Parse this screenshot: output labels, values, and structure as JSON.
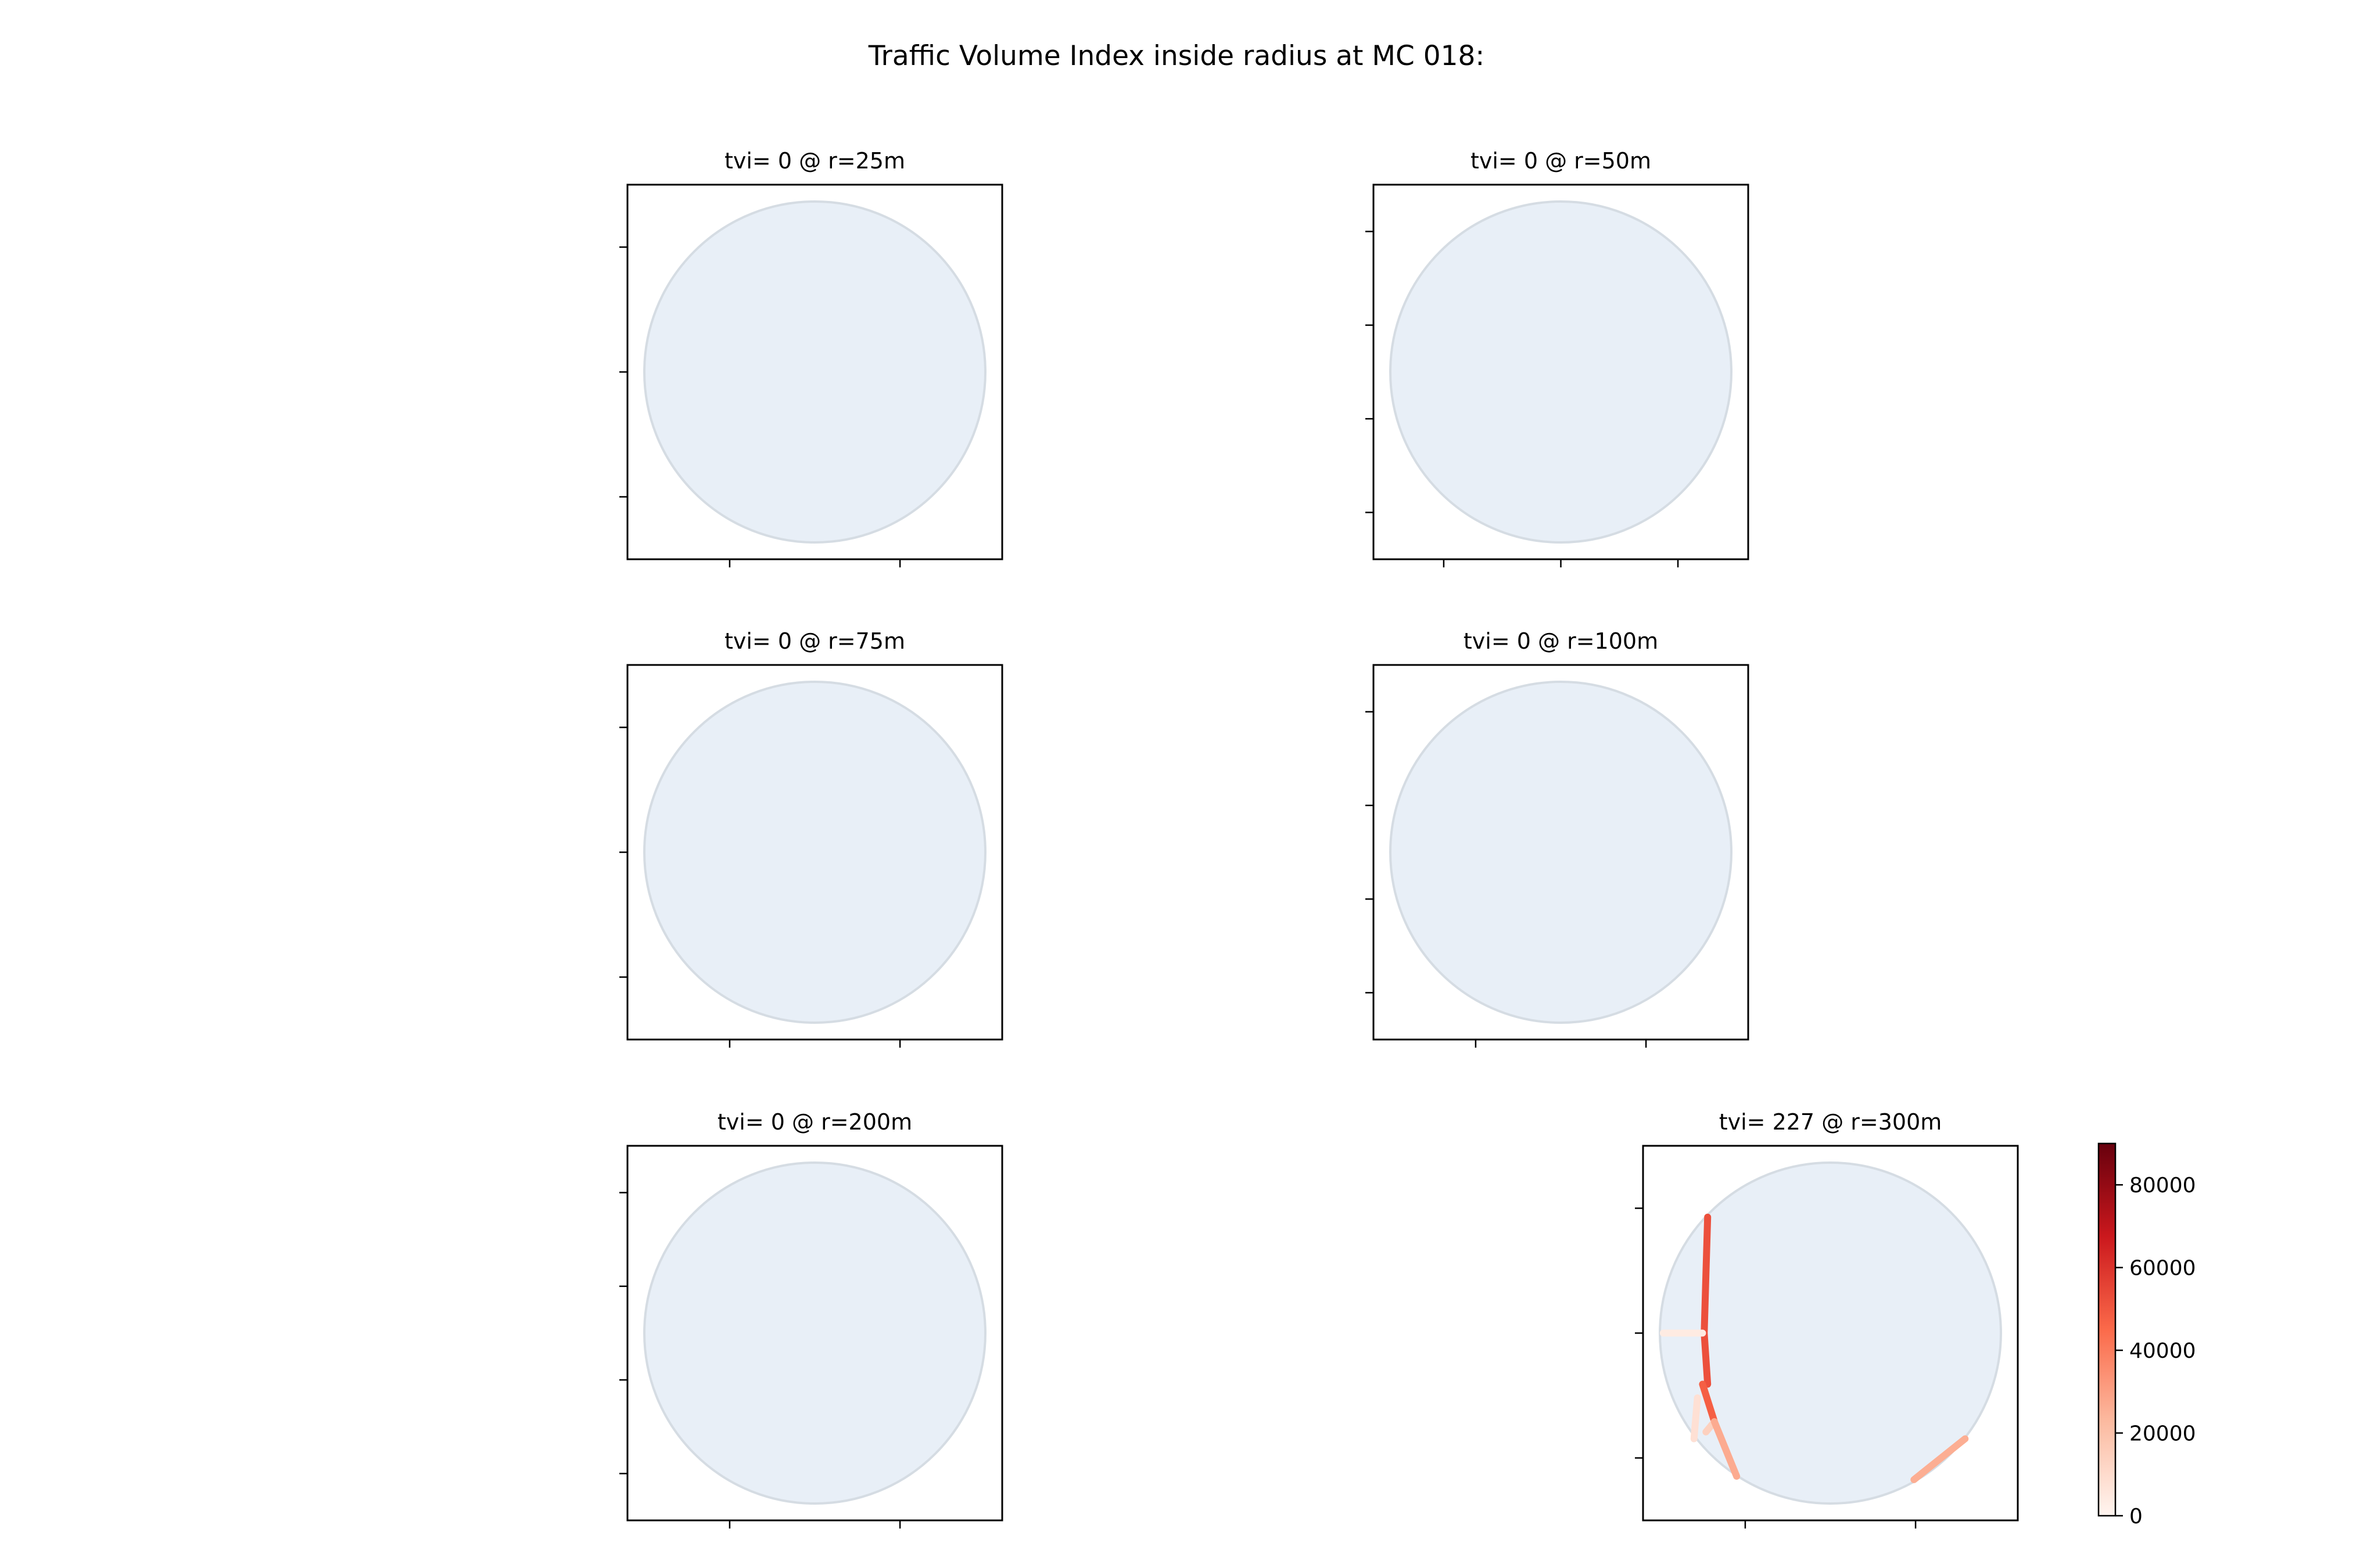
{
  "title": "Traffic Volume Index inside radius at MC 018:",
  "colors": {
    "buffer_fill": "#e8eff7",
    "buffer_edge": "#d5dce3",
    "frame": "#000000",
    "colormap": [
      "#fff5f0",
      "#fcbba1",
      "#fb6a4a",
      "#cb181d",
      "#67000d"
    ]
  },
  "chart_data": [
    {
      "type": "map",
      "title": "tvi= 0 @ r=25m",
      "radius_m": 25,
      "tvi": 0,
      "grid": false,
      "x_ticks": 2,
      "y_ticks": 3,
      "segments": []
    },
    {
      "type": "map",
      "title": "tvi= 0 @ r=50m",
      "radius_m": 50,
      "tvi": 0,
      "grid": false,
      "x_ticks": 3,
      "y_ticks": 4,
      "segments": []
    },
    {
      "type": "map",
      "title": "tvi= 0 @ r=75m",
      "radius_m": 75,
      "tvi": 0,
      "grid": false,
      "x_ticks": 2,
      "y_ticks": 3,
      "segments": []
    },
    {
      "type": "map",
      "title": "tvi= 0 @ r=100m",
      "radius_m": 100,
      "tvi": 0,
      "grid": false,
      "x_ticks": 2,
      "y_ticks": 4,
      "segments": []
    },
    {
      "type": "map",
      "title": "tvi= 0 @ r=200m",
      "radius_m": 200,
      "tvi": 0,
      "grid": false,
      "x_ticks": 2,
      "y_ticks": 4,
      "segments": []
    },
    {
      "type": "map",
      "title": "tvi= 227 @ r=300m",
      "radius_m": 300,
      "tvi": 227,
      "grid": false,
      "x_ticks": 2,
      "y_ticks": 3,
      "segments": [
        {
          "value": 52000,
          "coords": [
            [
              -0.72,
              0.68
            ],
            [
              -0.73,
              0.35
            ],
            [
              -0.74,
              0.0
            ],
            [
              -0.72,
              -0.3
            ]
          ]
        },
        {
          "value": 4000,
          "coords": [
            [
              -0.98,
              -0.0
            ],
            [
              -0.75,
              0.0
            ]
          ]
        },
        {
          "value": 48000,
          "coords": [
            [
              -0.75,
              -0.3
            ],
            [
              -0.68,
              -0.52
            ]
          ]
        },
        {
          "value": 8000,
          "coords": [
            [
              -0.78,
              -0.38
            ],
            [
              -0.8,
              -0.62
            ]
          ]
        },
        {
          "value": 14000,
          "coords": [
            [
              -0.68,
              -0.52
            ],
            [
              -0.73,
              -0.58
            ]
          ]
        },
        {
          "value": 27000,
          "coords": [
            [
              -0.68,
              -0.52
            ],
            [
              -0.55,
              -0.84
            ]
          ]
        },
        {
          "value": 26000,
          "coords": [
            [
              0.49,
              -0.86
            ],
            [
              0.79,
              -0.62
            ]
          ]
        }
      ]
    }
  ],
  "colorbar": {
    "min": 0,
    "max": 90000,
    "ticks": [
      0,
      20000,
      40000,
      60000,
      80000
    ],
    "tick_labels": [
      "0",
      "20000",
      "40000",
      "60000",
      "80000"
    ]
  }
}
